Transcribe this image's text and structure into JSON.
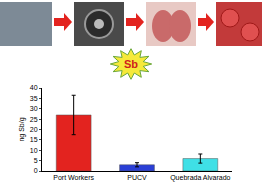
{
  "chart_data": {
    "type": "bar",
    "annotations": [
      {
        "text": "Sb"
      }
    ],
    "categories": [
      "Port Workers",
      "PUCV",
      "Quebrada Alvarado"
    ],
    "values": [
      27,
      3,
      6
    ],
    "errors": [
      9.5,
      1,
      2.2
    ],
    "colors": [
      "#e3231f",
      "#2a3fd6",
      "#3fe0e6"
    ],
    "y_label": "ng Sb/g",
    "ylim": [
      0,
      40
    ],
    "yticks": [
      0,
      5,
      10,
      15,
      20,
      25,
      30,
      35,
      40
    ],
    "grid": false
  }
}
